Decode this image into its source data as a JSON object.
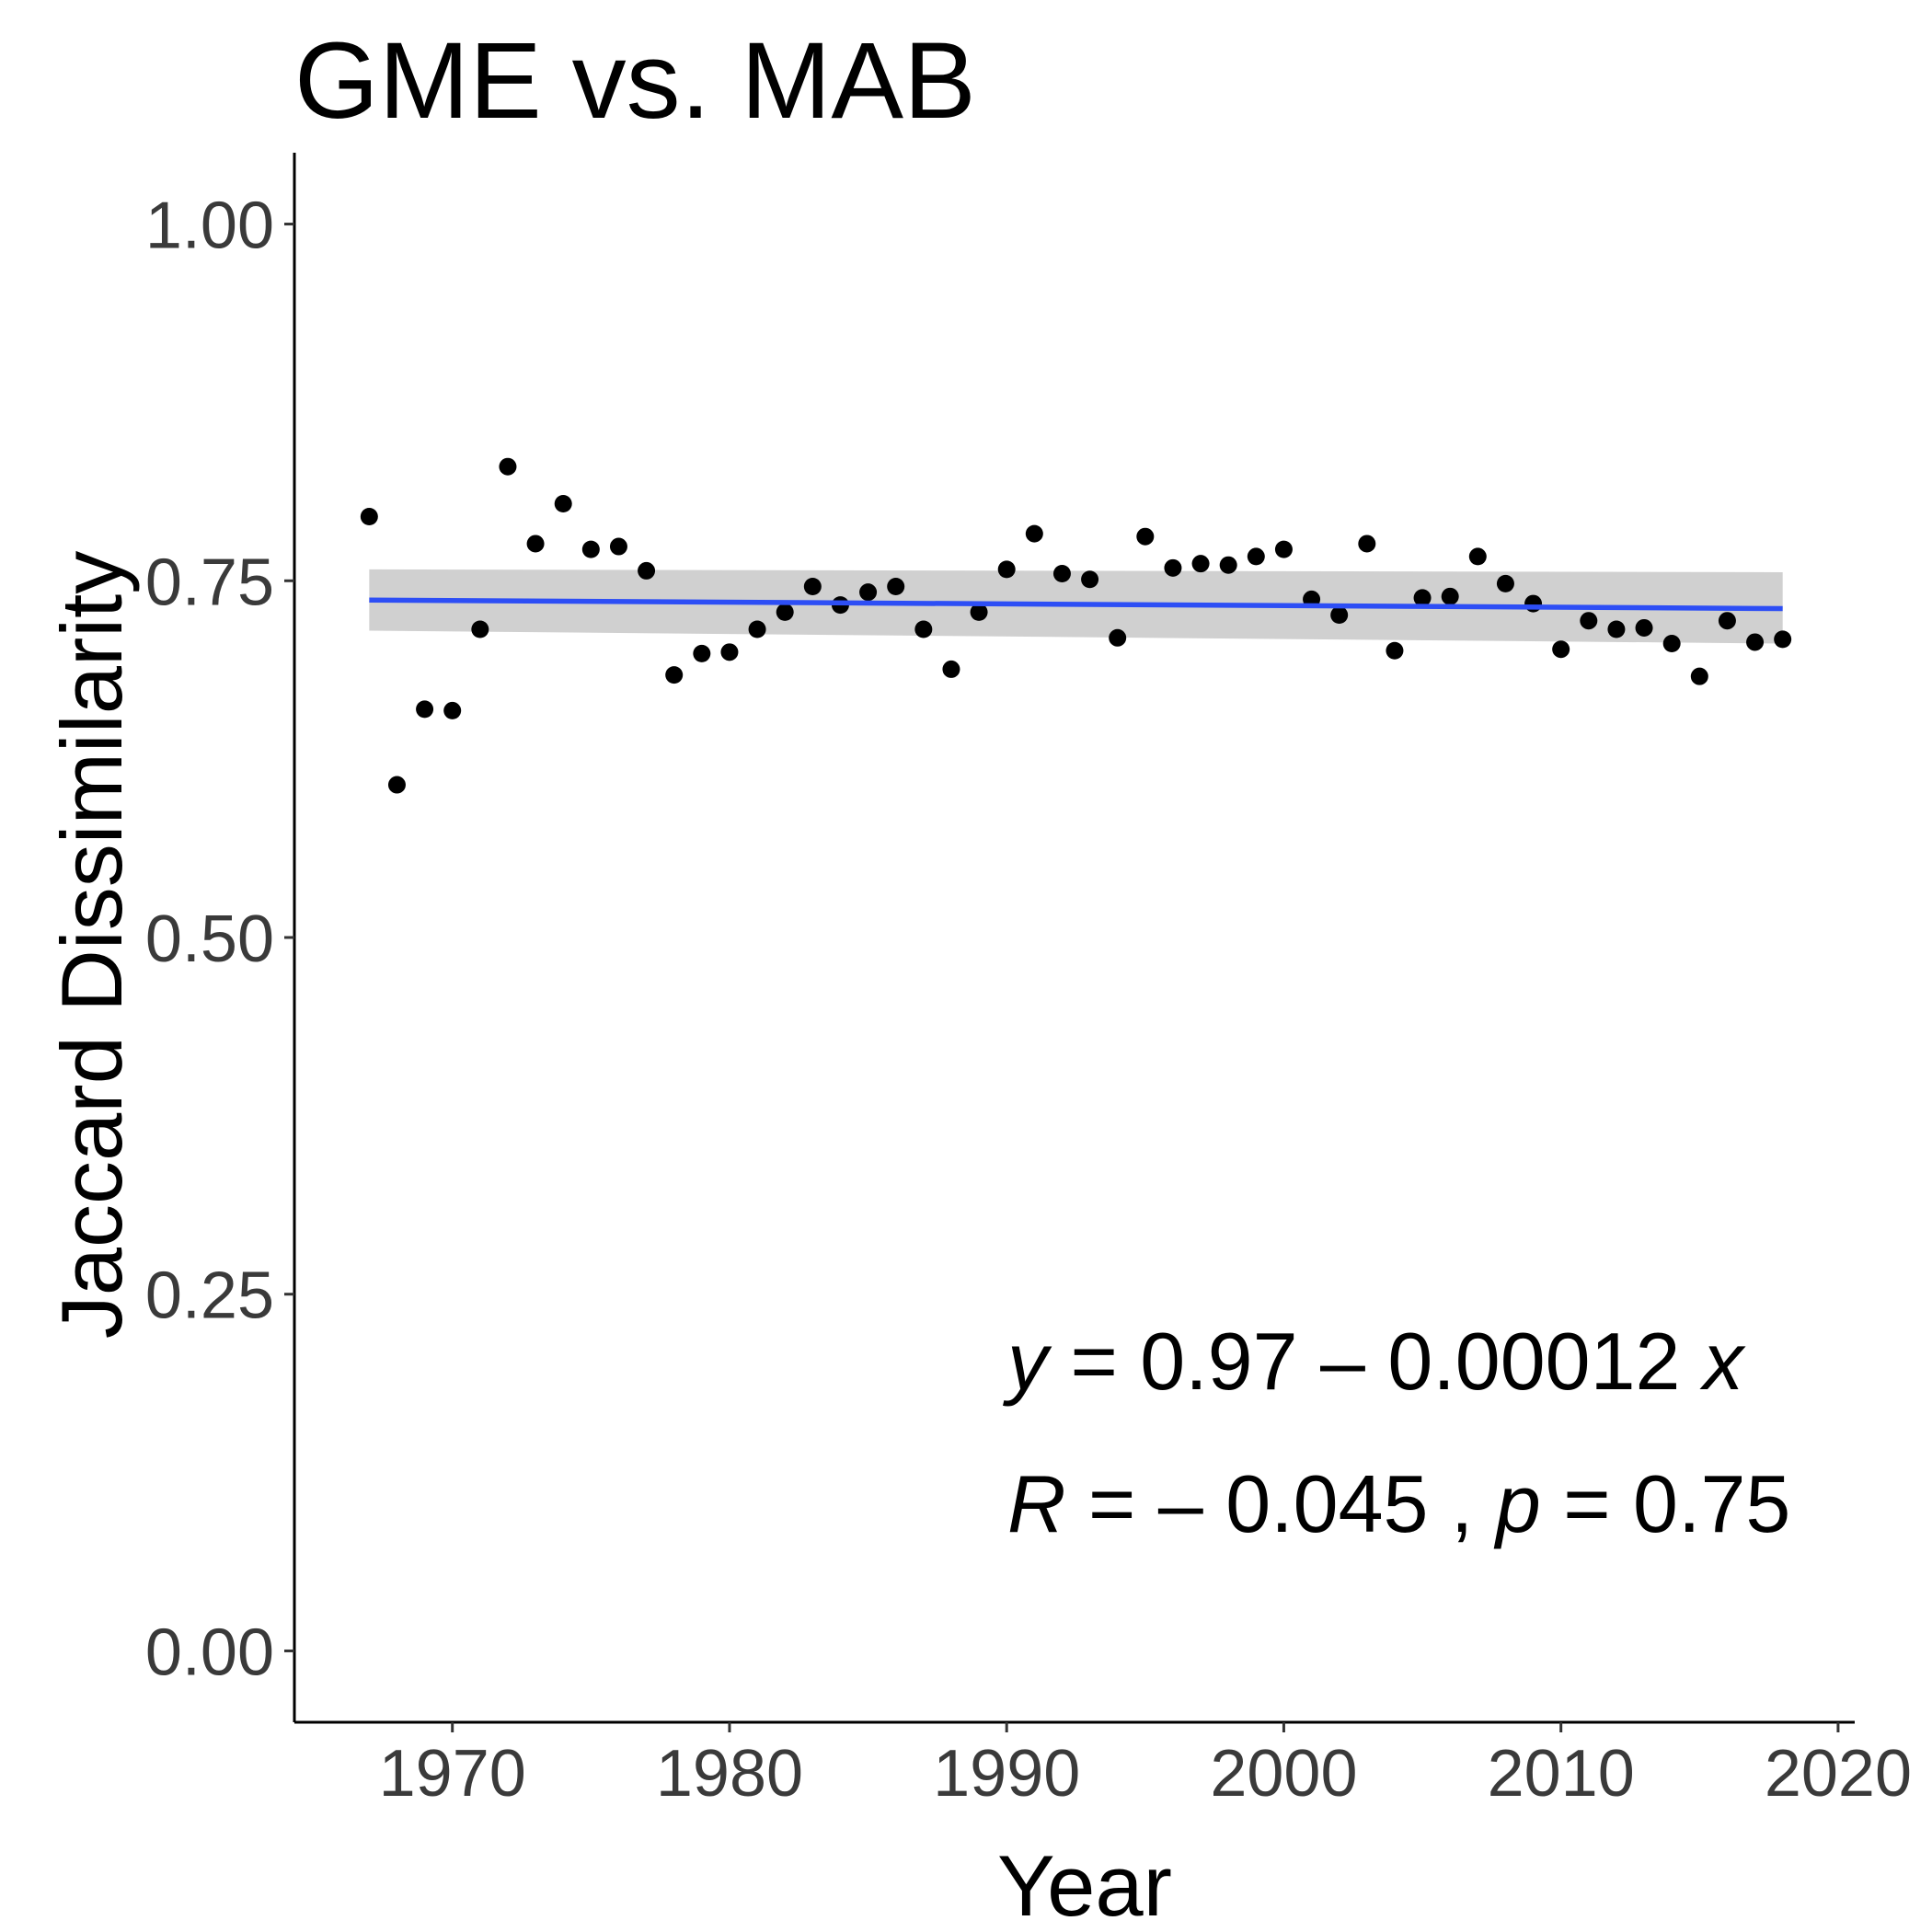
{
  "chart_data": {
    "type": "scatter",
    "title": "GME vs. MAB",
    "xlabel": "Year",
    "ylabel": "Jaccard Dissimilarity",
    "xlim": [
      1964.3,
      2020.6
    ],
    "ylim": [
      -0.05,
      1.05
    ],
    "x_ticks": [
      1970,
      1980,
      1990,
      2000,
      2010,
      2020
    ],
    "x_tick_labels": [
      "1970",
      "1980",
      "1990",
      "2000",
      "2010",
      "2020"
    ],
    "y_ticks": [
      0,
      0.25,
      0.5,
      0.75,
      1.0
    ],
    "y_tick_labels": [
      "0.00",
      "0.25",
      "0.50",
      "0.75",
      "1.00"
    ],
    "grid": false,
    "series": [
      {
        "x": [
          1967,
          1968,
          1969,
          1970,
          1971,
          1972,
          1973,
          1974,
          1975,
          1976,
          1977,
          1978,
          1979,
          1980,
          1981,
          1982,
          1983,
          1984,
          1985,
          1986,
          1987,
          1988,
          1989,
          1990,
          1991,
          1992,
          1993,
          1994,
          1995,
          1996,
          1997,
          1998,
          1999,
          2000,
          2001,
          2002,
          2003,
          2004,
          2005,
          2006,
          2007,
          2008,
          2009,
          2010,
          2011,
          2012,
          2013,
          2014,
          2015,
          2016,
          2017,
          2018
        ],
        "y": [
          0.795,
          0.607,
          0.66,
          0.659,
          0.716,
          0.83,
          0.776,
          0.804,
          0.772,
          0.774,
          0.757,
          0.684,
          0.699,
          0.7,
          0.716,
          0.728,
          0.746,
          0.733,
          0.742,
          0.746,
          0.716,
          0.688,
          0.728,
          0.758,
          0.783,
          0.755,
          0.751,
          0.71,
          0.781,
          0.759,
          0.762,
          0.761,
          0.767,
          0.772,
          0.737,
          0.726,
          0.776,
          0.701,
          0.738,
          0.739,
          0.767,
          0.748,
          0.734,
          0.702,
          0.722,
          0.716,
          0.717,
          0.706,
          0.683,
          0.722,
          0.707,
          0.709
        ],
        "color": "#000000"
      }
    ],
    "fit": {
      "type": "linear",
      "x_range": [
        1967,
        2018
      ],
      "y": [
        0.7365,
        0.7305
      ],
      "ci_lower": [
        0.715,
        0.706
      ],
      "ci_upper": [
        0.758,
        0.756
      ],
      "line_color": "#2d4ef5",
      "band_color": "#d0d0d0"
    },
    "annotations": [
      {
        "parts": [
          {
            "text": "y",
            "italic": true
          },
          {
            "text": " = 0.97 – 0.00012 ",
            "italic": false
          },
          {
            "text": "x",
            "italic": true
          }
        ]
      },
      {
        "parts": [
          {
            "text": "R",
            "italic": true
          },
          {
            "text": " = – 0.045 , ",
            "italic": false
          },
          {
            "text": "p",
            "italic": true
          },
          {
            "text": " = 0.75",
            "italic": false
          }
        ]
      }
    ]
  }
}
